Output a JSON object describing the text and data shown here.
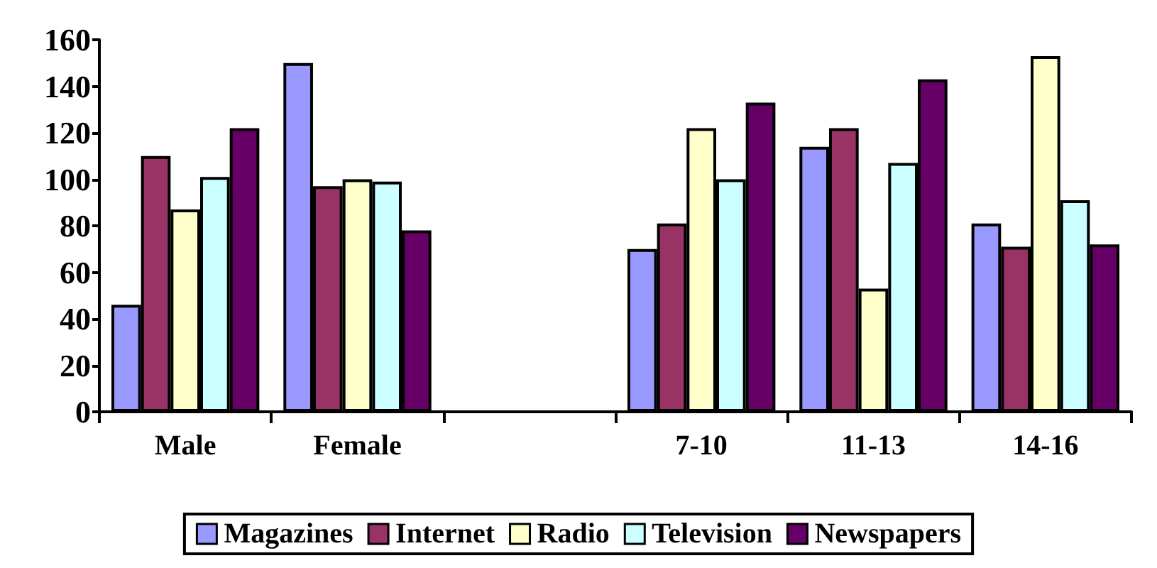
{
  "chart_data": {
    "type": "bar",
    "categories": [
      "Male",
      "Female",
      null,
      "7-10",
      "11-13",
      "14-16"
    ],
    "series": [
      {
        "name": "Magazines",
        "color": "#9999ff",
        "values": [
          46,
          150,
          null,
          70,
          114,
          81
        ]
      },
      {
        "name": "Internet",
        "color": "#993366",
        "values": [
          110,
          97,
          null,
          81,
          122,
          71
        ]
      },
      {
        "name": "Radio",
        "color": "#ffffcc",
        "values": [
          87,
          100,
          null,
          122,
          53,
          153
        ]
      },
      {
        "name": "Television",
        "color": "#ccffff",
        "values": [
          101,
          99,
          null,
          100,
          107,
          91
        ]
      },
      {
        "name": "Newspapers",
        "color": "#660066",
        "values": [
          122,
          78,
          null,
          133,
          143,
          72
        ]
      }
    ],
    "ylim": [
      0,
      160
    ],
    "yticks": [
      0,
      20,
      40,
      60,
      80,
      100,
      120,
      140,
      160
    ],
    "grid": false,
    "legend": "bottom"
  }
}
